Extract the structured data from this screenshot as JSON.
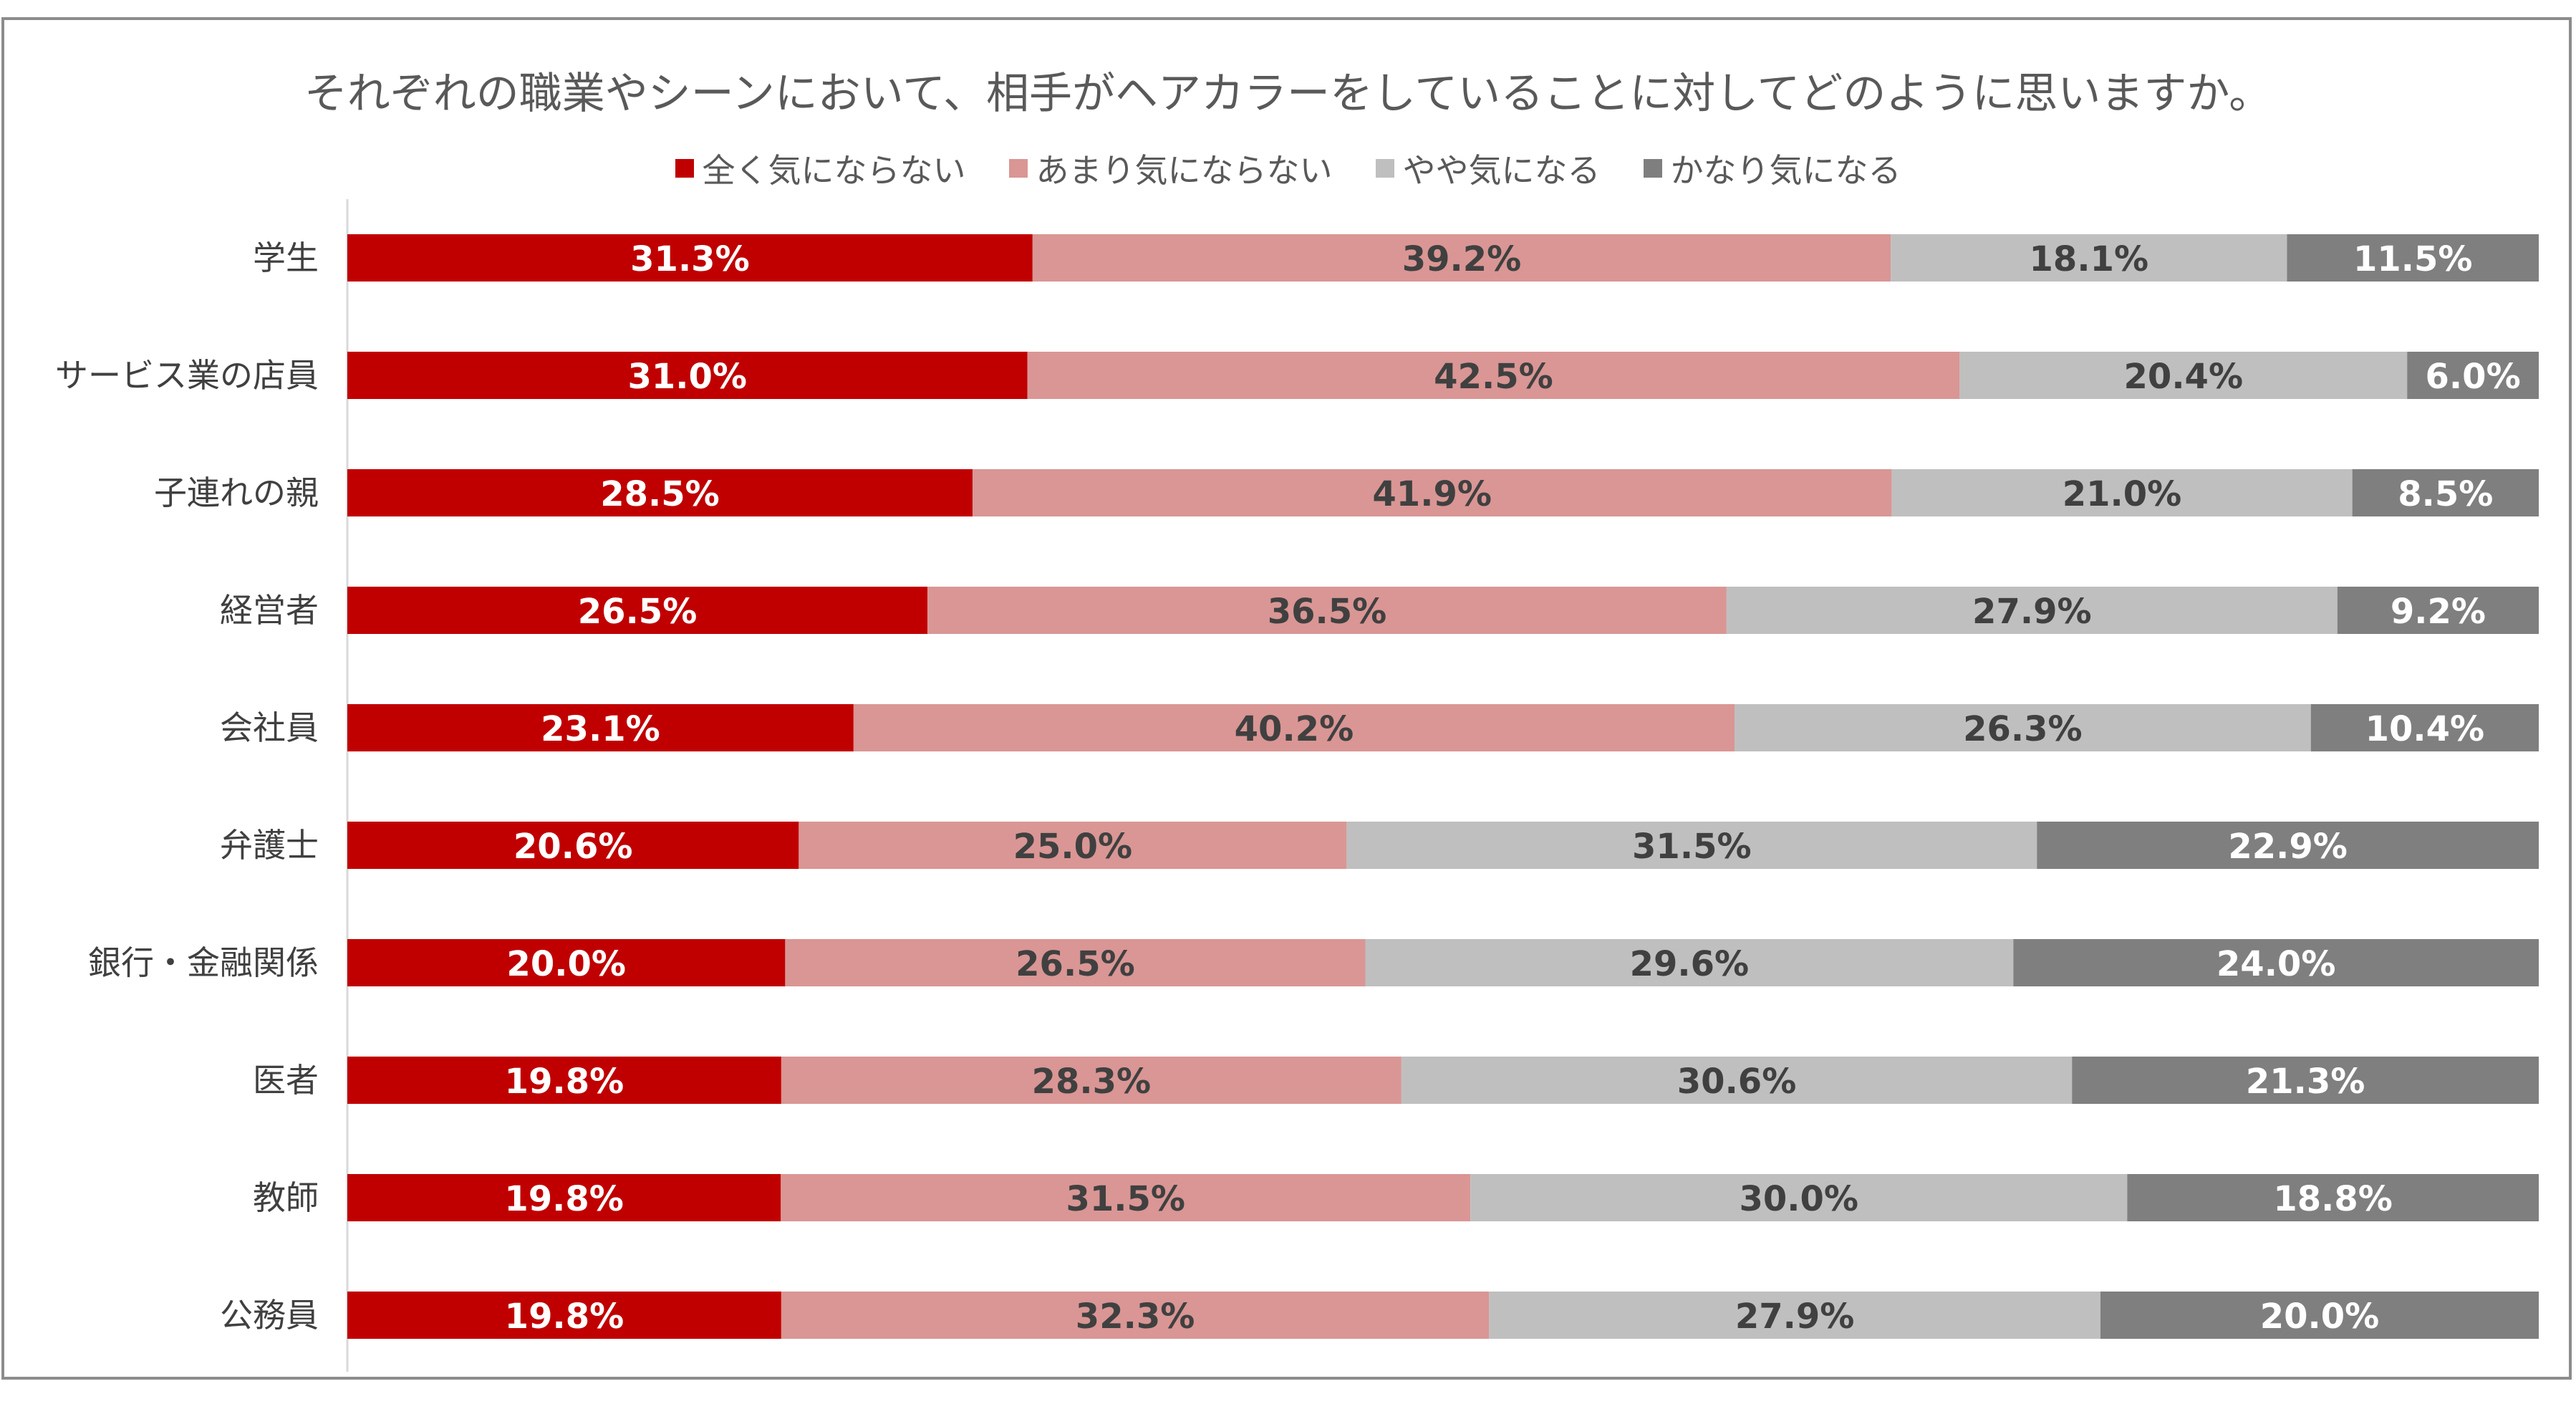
{
  "chart_data": {
    "type": "bar",
    "orientation": "horizontal",
    "stacked": true,
    "percent": true,
    "title": "それぞれの職業やシーンにおいて、相手がヘアカラーをしていることに対してどのように思いますか。",
    "categories": [
      "学生",
      "サービス業の店員",
      "子連れの親",
      "経営者",
      "会社員",
      "弁護士",
      "銀行・金融関係",
      "医者",
      "教師",
      "公務員"
    ],
    "series": [
      {
        "name": "全く気にならない",
        "color": "#c00000",
        "label_color": "#ffffff",
        "values": [
          31.3,
          31.0,
          28.5,
          26.5,
          23.1,
          20.6,
          20.0,
          19.8,
          19.8,
          19.8
        ],
        "labels": [
          "31.3%",
          "31.0%",
          "28.5%",
          "26.5%",
          "23.1%",
          "20.6%",
          "20.0%",
          "19.8%",
          "19.8%",
          "19.8%"
        ]
      },
      {
        "name": "あまり気にならない",
        "color": "#d99694",
        "label_color": "#404040",
        "values": [
          39.2,
          42.5,
          41.9,
          36.5,
          40.2,
          25.0,
          26.5,
          28.3,
          31.5,
          32.3
        ],
        "labels": [
          "39.2%",
          "42.5%",
          "41.9%",
          "36.5%",
          "40.2%",
          "25.0%",
          "26.5%",
          "28.3%",
          "31.5%",
          "32.3%"
        ]
      },
      {
        "name": "やや気になる",
        "color": "#bfbfbf",
        "label_color": "#404040",
        "values": [
          18.1,
          20.4,
          21.0,
          27.9,
          26.3,
          31.5,
          29.6,
          30.6,
          30.0,
          27.9
        ],
        "labels": [
          "18.1%",
          "20.4%",
          "21.0%",
          "27.9%",
          "26.3%",
          "31.5%",
          "29.6%",
          "30.6%",
          "30.0%",
          "27.9%"
        ]
      },
      {
        "name": "かなり気になる",
        "color": "#7f7f7f",
        "label_color": "#ffffff",
        "values": [
          11.5,
          6.0,
          8.5,
          9.2,
          10.4,
          22.9,
          24.0,
          21.3,
          18.8,
          20.0
        ],
        "labels": [
          "11.5%",
          "6.0%",
          "8.5%",
          "9.2%",
          "10.4%",
          "22.9%",
          "24.0%",
          "21.3%",
          "18.8%",
          "20.0%"
        ]
      }
    ],
    "xlim": [
      0,
      100
    ],
    "legend_position": "top",
    "grid": false
  }
}
